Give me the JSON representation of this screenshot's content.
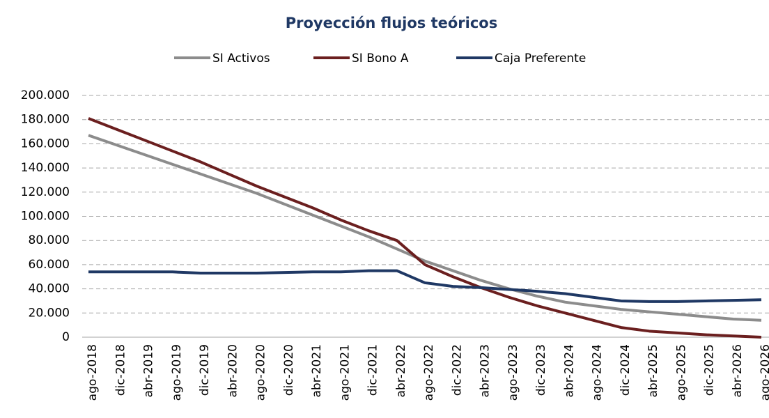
{
  "chart_data": {
    "type": "line",
    "title": "Proyección flujos teóricos",
    "categories": [
      "ago-2018",
      "dic-2018",
      "abr-2019",
      "ago-2019",
      "dic-2019",
      "abr-2020",
      "ago-2020",
      "dic-2020",
      "abr-2021",
      "ago-2021",
      "dic-2021",
      "abr-2022",
      "ago-2022",
      "dic-2022",
      "abr-2023",
      "ago-2023",
      "dic-2023",
      "abr-2024",
      "ago-2024",
      "dic-2024",
      "abr-2025",
      "ago-2025",
      "dic-2025",
      "abr-2026",
      "ago-2026"
    ],
    "series": [
      {
        "name": "SI Activos",
        "color": "#8c8c8c",
        "values": [
          167000,
          159000,
          151000,
          143000,
          135000,
          127000,
          119000,
          110000,
          101000,
          92000,
          83000,
          73000,
          63000,
          55000,
          47000,
          40000,
          34000,
          29000,
          26000,
          23000,
          21000,
          19000,
          17000,
          15000,
          14000
        ]
      },
      {
        "name": "SI Bono A",
        "color": "#6b1f1f",
        "values": [
          181000,
          172000,
          163000,
          154000,
          145000,
          135000,
          125000,
          116000,
          107000,
          97000,
          88000,
          80000,
          60000,
          50000,
          41000,
          33000,
          26000,
          20000,
          14000,
          8000,
          5000,
          3500,
          2000,
          1000,
          0
        ]
      },
      {
        "name": "Caja Preferente",
        "color": "#1f3864",
        "values": [
          54000,
          54000,
          54000,
          54000,
          53000,
          53000,
          53000,
          53500,
          54000,
          54000,
          55000,
          55000,
          45000,
          42000,
          41000,
          39500,
          38000,
          36000,
          33000,
          30000,
          29500,
          29500,
          30000,
          30500,
          31000
        ]
      }
    ],
    "ylim": [
      0,
      200000
    ],
    "yticks": [
      0,
      {
        "value": 20000,
        "label": "20.000"
      },
      {
        "value": 40000,
        "label": "40.000"
      },
      {
        "value": 60000,
        "label": "60.000"
      },
      {
        "value": 80000,
        "label": "80.000"
      },
      {
        "value": 100000,
        "label": "100.000"
      },
      {
        "value": 120000,
        "label": "120.000"
      },
      {
        "value": 140000,
        "label": "140.000"
      },
      {
        "value": 160000,
        "label": "160.000"
      },
      {
        "value": 180000,
        "label": "180.000"
      },
      {
        "value": 200000,
        "label": "200.000"
      }
    ],
    "grid": true,
    "legend": "top"
  }
}
